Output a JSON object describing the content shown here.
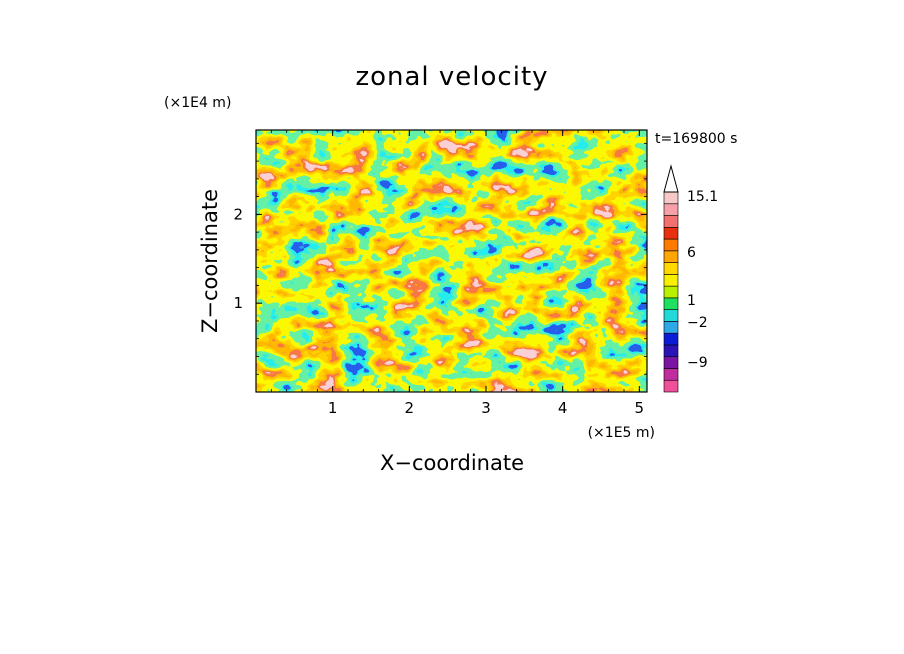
{
  "chart_data": {
    "type": "heatmap",
    "title": "zonal velocity",
    "xlabel": "X−coordinate",
    "ylabel": "Z−coordinate",
    "x_unit": "(×1E5 m)",
    "y_unit": "(×1E4 m)",
    "time_label": "t=169800 s",
    "xlim": [
      0,
      5.1
    ],
    "ylim": [
      0,
      2.95
    ],
    "x_ticks": [
      "1",
      "2",
      "3",
      "4",
      "5"
    ],
    "y_ticks": [
      "1",
      "2"
    ],
    "colorbar": {
      "tick_labels": [
        "15.1",
        "6",
        "1",
        "−2",
        "−9"
      ],
      "colors": [
        "#f0509a",
        "#c02ca0",
        "#7a15a3",
        "#2a14b8",
        "#0a1cd5",
        "#2fa8e8",
        "#22d8d8",
        "#20e060",
        "#b8f000",
        "#f8f000",
        "#ffd800",
        "#ffa600",
        "#ff7a00",
        "#e83010",
        "#f27070",
        "#f7a0a8",
        "#f8c8c8"
      ],
      "extend_top": true
    }
  }
}
